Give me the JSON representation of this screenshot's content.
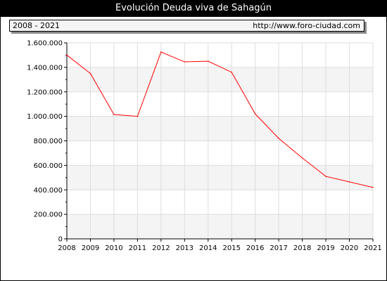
{
  "header": {
    "title": "Evolución Deuda viva de Sahagún",
    "period": "2008 - 2021",
    "site": "http://www.foro-ciudad.com"
  },
  "chart_data": {
    "type": "line",
    "title": "Evolución Deuda viva de Sahagún",
    "xlabel": "",
    "ylabel": "",
    "x": [
      2008,
      2009,
      2010,
      2011,
      2012,
      2013,
      2014,
      2015,
      2016,
      2017,
      2018,
      2019,
      2020,
      2021
    ],
    "series": [
      {
        "values": [
          1500000,
          1350000,
          1015000,
          1000000,
          1525000,
          1445000,
          1450000,
          1360000,
          1020000,
          820000,
          660000,
          510000,
          465000,
          420000
        ]
      }
    ],
    "xlim": [
      2008,
      2021
    ],
    "ylim": [
      0,
      1600000
    ],
    "yticks": [
      0,
      200000,
      400000,
      600000,
      800000,
      1000000,
      1200000,
      1400000,
      1600000
    ],
    "ytick_labels": [
      "0",
      "200.000",
      "400.000",
      "600.000",
      "800.000",
      "1.000.000",
      "1.200.000",
      "1.400.000",
      "1.600.000"
    ],
    "xtick_labels": [
      "2008",
      "2009",
      "2010",
      "2011",
      "2012",
      "2013",
      "2014",
      "2015",
      "2016",
      "2017",
      "2018",
      "2019",
      "2020",
      "2021"
    ],
    "grid": true,
    "legend": "none",
    "colors": {
      "line": "#ff0000",
      "band": "#f4f4f4",
      "grid": "#dddddd"
    }
  }
}
